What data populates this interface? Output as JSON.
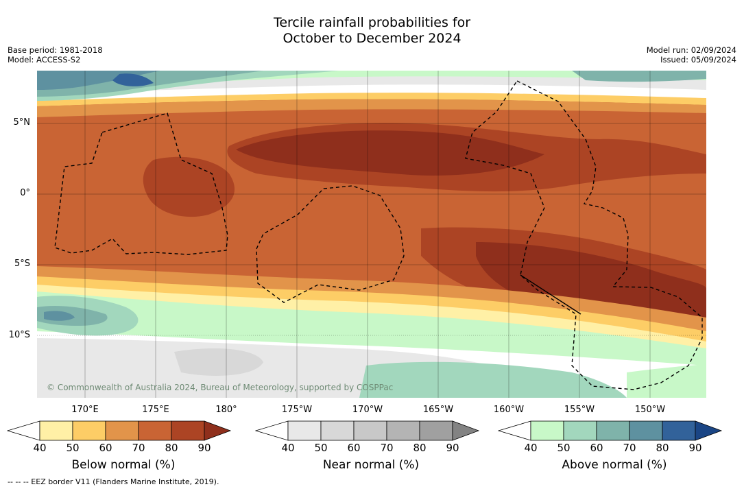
{
  "title_line1": "Tercile rainfall probabilities for",
  "title_line2": "October to December 2024",
  "meta_left": {
    "base_period": "Base period: 1981-2018",
    "model": "Model: ACCESS-S2"
  },
  "meta_right": {
    "model_run": "Model run: 02/09/2024",
    "issued": "Issued: 05/09/2024"
  },
  "latitudes": [
    "5°N",
    "0°",
    "5°S",
    "10°S"
  ],
  "longitudes": [
    "170°E",
    "175°E",
    "180°",
    "175°W",
    "170°W",
    "165°W",
    "160°W",
    "155°W",
    "150°W"
  ],
  "copyright": "© Commonwealth of Australia 2024, Bureau of Meteorology, supported by COSPPac",
  "footnote": "--  --  -- EEZ border V11 (Flanders Marine Institute, 2019).",
  "colorbars": [
    {
      "label": "Below normal (%)",
      "ticks": [
        "40",
        "50",
        "60",
        "70",
        "80",
        "90"
      ],
      "colors": [
        "#ffffff",
        "#fff0a6",
        "#fdcd66",
        "#e2944a",
        "#c96434",
        "#ac4424",
        "#8f2f1c"
      ]
    },
    {
      "label": "Near normal (%)",
      "ticks": [
        "40",
        "50",
        "60",
        "70",
        "80",
        "90"
      ],
      "colors": [
        "#ffffff",
        "#e8e8e8",
        "#d8d8d8",
        "#c8c8c8",
        "#b4b4b4",
        "#a0a0a0",
        "#838383"
      ]
    },
    {
      "label": "Above normal (%)",
      "ticks": [
        "40",
        "50",
        "60",
        "70",
        "80",
        "90"
      ],
      "colors": [
        "#ffffff",
        "#c8f8c8",
        "#a2d7bd",
        "#7fb3aa",
        "#5e91a0",
        "#32629a",
        "#1a4585"
      ]
    }
  ]
}
